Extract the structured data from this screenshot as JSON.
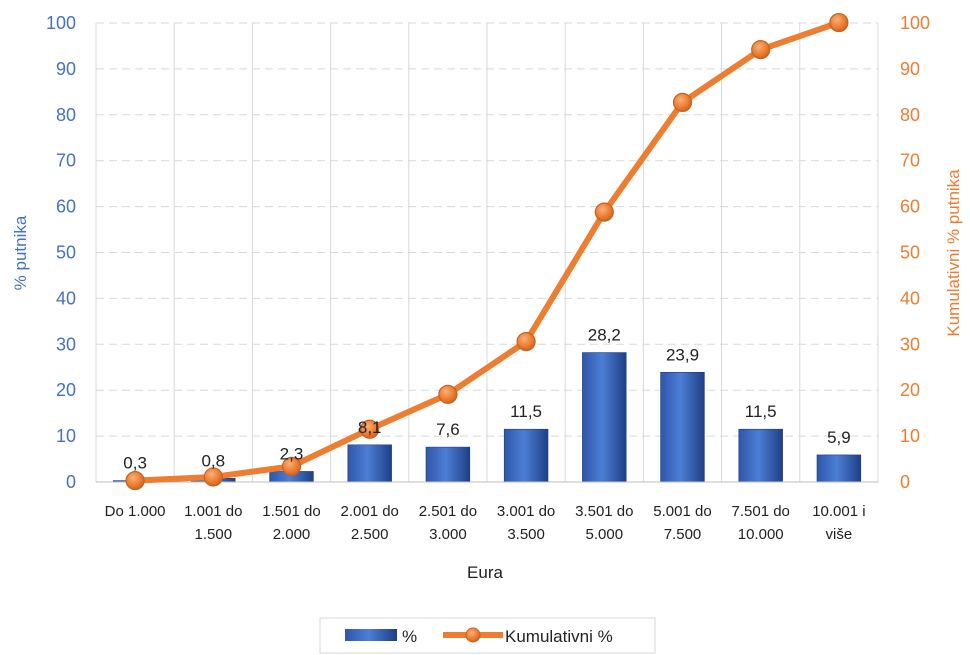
{
  "chart_data": {
    "type": "bar+line",
    "title": "",
    "xlabel": "Eura",
    "ylabel": "% putnika",
    "ylabel_right": "Kumulativni % putnika",
    "categories": [
      [
        "Do 1.000",
        ""
      ],
      [
        "1.001 do",
        "1.500"
      ],
      [
        "1.501 do",
        "2.000"
      ],
      [
        "2.001 do",
        "2.500"
      ],
      [
        "2.501 do",
        "3.000"
      ],
      [
        "3.001 do",
        "3.500"
      ],
      [
        "3.501 do",
        "5.000"
      ],
      [
        "5.001 do",
        "7.500"
      ],
      [
        "7.501 do",
        "10.000"
      ],
      [
        "10.001 i",
        "više"
      ]
    ],
    "series": [
      {
        "name": "%",
        "type": "bar",
        "axis": "left",
        "values": [
          0.3,
          0.8,
          2.3,
          8.1,
          7.6,
          11.5,
          28.2,
          23.9,
          11.5,
          5.9
        ],
        "labels": [
          "0,3",
          "0,8",
          "2,3",
          "8,1",
          "7,6",
          "11,5",
          "28,2",
          "23,9",
          "11,5",
          "5,9"
        ],
        "color": "#4472c4"
      },
      {
        "name": "Kumulativni %",
        "type": "line",
        "axis": "right",
        "values": [
          0.3,
          1.1,
          3.4,
          11.5,
          19.1,
          30.6,
          58.8,
          82.7,
          94.2,
          100.1
        ],
        "color": "#ed7d31"
      }
    ],
    "ylim": [
      0,
      100
    ],
    "ylim_right": [
      0,
      100
    ],
    "yticks": [
      0,
      10,
      20,
      30,
      40,
      50,
      60,
      70,
      80,
      90,
      100
    ],
    "grid": true,
    "legend": "bottom-center"
  }
}
